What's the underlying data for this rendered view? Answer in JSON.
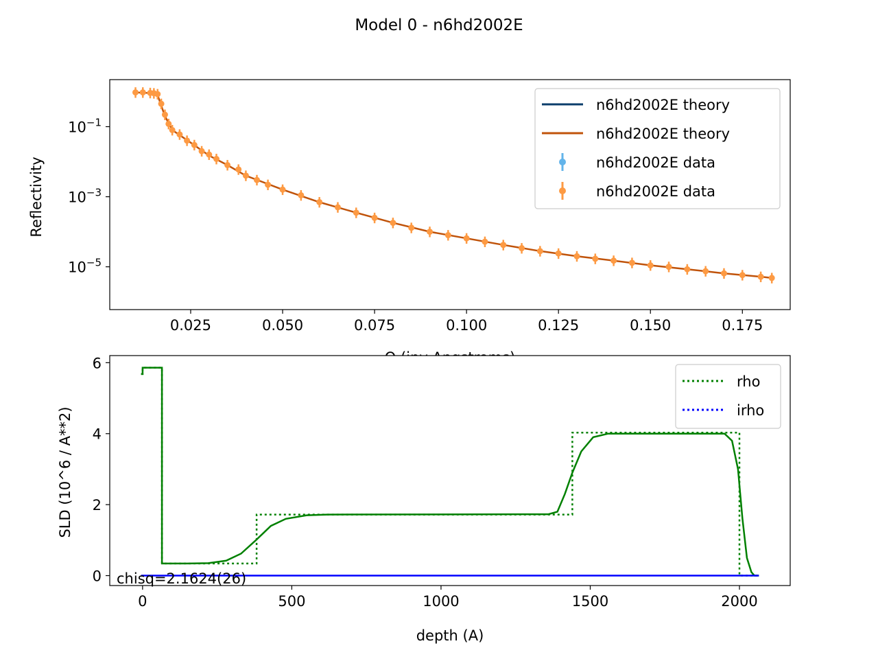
{
  "figure": {
    "title": "Model 0 - n6hd2002E"
  },
  "chart_data": [
    {
      "type": "scatter",
      "ylabel": "Reflectivity",
      "xlabel": "Q (inv Angstroms)",
      "yscale": "log",
      "xlim": [
        0.003,
        0.188
      ],
      "ylim": [
        6e-07,
        2.2
      ],
      "xticks": [
        0.025,
        0.05,
        0.075,
        0.1,
        0.125,
        0.15,
        0.175
      ],
      "xtick_labels": [
        "0.025",
        "0.050",
        "0.075",
        "0.100",
        "0.125",
        "0.150",
        "0.175"
      ],
      "yticks": [
        0.1,
        0.001,
        1e-05
      ],
      "ytick_labels": [
        {
          "base": "10",
          "exp": "−1"
        },
        {
          "base": "10",
          "exp": "−3"
        },
        {
          "base": "10",
          "exp": "−5"
        }
      ],
      "legend": {
        "position": "upper right",
        "entries": [
          {
            "label": "n6hd2002E theory",
            "kind": "line",
            "color": "#0b3d6b"
          },
          {
            "label": "n6hd2002E theory",
            "kind": "line",
            "color": "#c0530a"
          },
          {
            "label": "n6hd2002E data",
            "kind": "errorbar",
            "color": "#63b4ea"
          },
          {
            "label": "n6hd2002E data",
            "kind": "errorbar",
            "color": "#fd9a43"
          }
        ]
      },
      "series": [
        {
          "name": "n6hd2002E data",
          "color": "#fd9a43",
          "points": [
            [
              0.01,
              0.95
            ],
            [
              0.012,
              0.95
            ],
            [
              0.014,
              0.92
            ],
            [
              0.015,
              0.9
            ],
            [
              0.016,
              0.85
            ],
            [
              0.017,
              0.45
            ],
            [
              0.018,
              0.22
            ],
            [
              0.019,
              0.12
            ],
            [
              0.02,
              0.08
            ],
            [
              0.022,
              0.06
            ],
            [
              0.024,
              0.04
            ],
            [
              0.026,
              0.03
            ],
            [
              0.028,
              0.02
            ],
            [
              0.03,
              0.016
            ],
            [
              0.032,
              0.012
            ],
            [
              0.035,
              0.008
            ],
            [
              0.038,
              0.006
            ],
            [
              0.04,
              0.004
            ],
            [
              0.043,
              0.003
            ],
            [
              0.046,
              0.0022
            ],
            [
              0.05,
              0.0016
            ],
            [
              0.055,
              0.0011
            ],
            [
              0.06,
              0.0007
            ],
            [
              0.065,
              0.0005
            ],
            [
              0.07,
              0.00035
            ],
            [
              0.075,
              0.00025
            ],
            [
              0.08,
              0.00018
            ],
            [
              0.085,
              0.00013
            ],
            [
              0.09,
              0.0001
            ],
            [
              0.095,
              8e-05
            ],
            [
              0.1,
              6.5e-05
            ],
            [
              0.105,
              5.2e-05
            ],
            [
              0.11,
              4.2e-05
            ],
            [
              0.115,
              3.4e-05
            ],
            [
              0.12,
              2.8e-05
            ],
            [
              0.125,
              2.4e-05
            ],
            [
              0.13,
              2e-05
            ],
            [
              0.135,
              1.7e-05
            ],
            [
              0.14,
              1.5e-05
            ],
            [
              0.145,
              1.3e-05
            ],
            [
              0.15,
              1.1e-05
            ],
            [
              0.155,
              1e-05
            ],
            [
              0.16,
              8.5e-06
            ],
            [
              0.165,
              7.5e-06
            ],
            [
              0.17,
              6.5e-06
            ],
            [
              0.175,
              5.8e-06
            ],
            [
              0.18,
              5.2e-06
            ],
            [
              0.183,
              4.8e-06
            ]
          ]
        },
        {
          "name": "n6hd2002E theory",
          "color": "#c0530a",
          "points": [
            [
              0.01,
              0.95
            ],
            [
              0.015,
              0.9
            ],
            [
              0.016,
              0.8
            ],
            [
              0.017,
              0.4
            ],
            [
              0.018,
              0.2
            ],
            [
              0.02,
              0.08
            ],
            [
              0.025,
              0.035
            ],
            [
              0.03,
              0.015
            ],
            [
              0.035,
              0.008
            ],
            [
              0.04,
              0.004
            ],
            [
              0.05,
              0.0016
            ],
            [
              0.06,
              0.0007
            ],
            [
              0.07,
              0.00035
            ],
            [
              0.08,
              0.00018
            ],
            [
              0.09,
              0.0001
            ],
            [
              0.1,
              6.5e-05
            ],
            [
              0.11,
              4.2e-05
            ],
            [
              0.12,
              2.8e-05
            ],
            [
              0.13,
              2e-05
            ],
            [
              0.14,
              1.5e-05
            ],
            [
              0.15,
              1.1e-05
            ],
            [
              0.16,
              8.5e-06
            ],
            [
              0.17,
              6.5e-06
            ],
            [
              0.18,
              5.2e-06
            ],
            [
              0.183,
              4.8e-06
            ]
          ]
        }
      ]
    },
    {
      "type": "line",
      "xlabel": "depth (A)",
      "ylabel": "SLD (10^6 / A**2)",
      "xlim": [
        -110,
        2170
      ],
      "ylim": [
        -0.28,
        6.2
      ],
      "xticks": [
        0,
        500,
        1000,
        1500,
        2000
      ],
      "xtick_labels": [
        "0",
        "500",
        "1000",
        "1500",
        "2000"
      ],
      "yticks": [
        0,
        2,
        4,
        6
      ],
      "ytick_labels": [
        "0",
        "2",
        "4",
        "6"
      ],
      "annotation": "chisq=2.1624(26)",
      "legend": {
        "position": "upper right",
        "entries": [
          {
            "label": "rho",
            "kind": "dotted",
            "color": "#008000"
          },
          {
            "label": "irho",
            "kind": "dotted",
            "color": "#0000ff"
          }
        ]
      },
      "series": [
        {
          "name": "rho",
          "style": "dotted",
          "color": "#008000",
          "points": [
            [
              -5,
              5.68
            ],
            [
              0,
              5.68
            ],
            [
              0,
              5.86
            ],
            [
              65,
              5.86
            ],
            [
              65,
              0.34
            ],
            [
              382,
              0.34
            ],
            [
              382,
              1.72
            ],
            [
              1440,
              1.72
            ],
            [
              1440,
              4.03
            ],
            [
              2000,
              4.03
            ],
            [
              2000,
              0.0
            ],
            [
              2065,
              0.0
            ]
          ]
        },
        {
          "name": "rho",
          "style": "solid",
          "color": "#008000",
          "points": [
            [
              -5,
              5.68
            ],
            [
              0,
              5.68
            ],
            [
              0,
              5.86
            ],
            [
              65,
              5.86
            ],
            [
              65,
              0.34
            ],
            [
              150,
              0.34
            ],
            [
              220,
              0.35
            ],
            [
              280,
              0.42
            ],
            [
              330,
              0.62
            ],
            [
              380,
              1.0
            ],
            [
              430,
              1.4
            ],
            [
              480,
              1.6
            ],
            [
              550,
              1.7
            ],
            [
              620,
              1.72
            ],
            [
              1360,
              1.73
            ],
            [
              1390,
              1.8
            ],
            [
              1415,
              2.3
            ],
            [
              1440,
              2.9
            ],
            [
              1470,
              3.5
            ],
            [
              1510,
              3.9
            ],
            [
              1560,
              4.0
            ],
            [
              1950,
              4.0
            ],
            [
              1975,
              3.8
            ],
            [
              1995,
              3.0
            ],
            [
              2010,
              1.6
            ],
            [
              2025,
              0.5
            ],
            [
              2040,
              0.1
            ],
            [
              2050,
              0.0
            ],
            [
              2065,
              0.0
            ]
          ]
        },
        {
          "name": "irho",
          "style": "solid",
          "color": "#0000ff",
          "points": [
            [
              -5,
              0.0
            ],
            [
              2065,
              0.0
            ]
          ]
        }
      ]
    }
  ]
}
